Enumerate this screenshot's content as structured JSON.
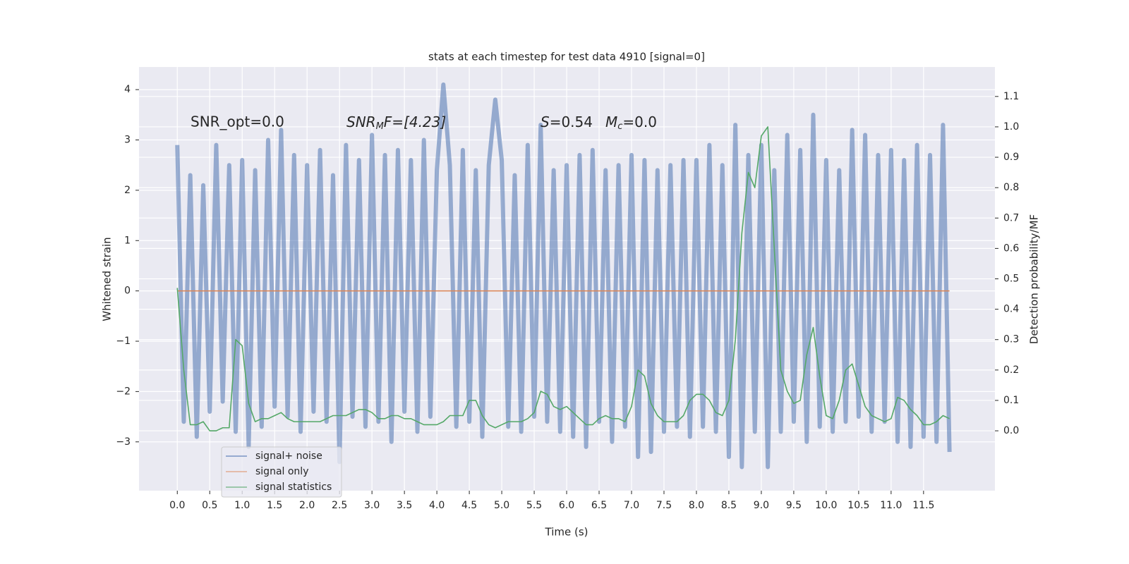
{
  "chart_data": {
    "type": "line",
    "title": "stats at each timestep for test data 4910 [signal=0]",
    "xlabel": "Time (s)",
    "ylabel": "Whitened strain",
    "y2label": "Detection probability/MF",
    "annotations": [
      [
        "SNR_opt=0.0"
      ],
      [
        "SNR",
        "M",
        "F=[4.23]"
      ],
      [
        "S",
        "=0.54",
        "M",
        "c",
        "=0.0"
      ]
    ],
    "grid": true,
    "legend": "lower left",
    "xlim": [
      -0.59,
      12.6
    ],
    "ylim": [
      -3.97,
      4.45
    ],
    "y2lim": [
      -0.197,
      1.197
    ],
    "xticks": [
      {
        "value": 0,
        "label": "0.0"
      },
      0.5,
      {
        "value": 1,
        "label": "1.0"
      },
      1.5,
      {
        "value": 2,
        "label": "2.0"
      },
      2.5,
      {
        "value": 3,
        "label": "3.0"
      },
      3.5,
      {
        "value": 4,
        "label": "4.0"
      },
      4.5,
      {
        "value": 5,
        "label": "5.0"
      },
      5.5,
      {
        "value": 6,
        "label": "6.0"
      },
      6.5,
      {
        "value": 7,
        "label": "7.0"
      },
      7.5,
      {
        "value": 8,
        "label": "8.0"
      },
      8.5,
      {
        "value": 9,
        "label": "9.0"
      },
      9.5,
      {
        "value": 10,
        "label": "10.0"
      },
      10.5,
      {
        "value": 11,
        "label": "11.0"
      },
      11.5
    ],
    "yticks": [
      {
        "value": -3,
        "label": "−3"
      },
      {
        "value": -2,
        "label": "−2"
      },
      {
        "value": -1,
        "label": "−1"
      },
      0,
      1,
      2,
      3,
      4
    ],
    "y2ticks": [
      {
        "value": 0,
        "label": "0.0"
      },
      0.1,
      0.2,
      0.3,
      0.4,
      0.5,
      0.6,
      0.7,
      0.8,
      0.9,
      {
        "value": 1,
        "label": "1.0"
      },
      1.1
    ],
    "x": [
      0,
      0.1,
      0.2,
      0.3,
      0.4,
      0.5,
      0.6,
      0.7,
      0.8,
      0.9,
      1,
      1.1,
      1.2,
      1.3,
      1.4,
      1.5,
      1.6,
      1.7,
      1.8,
      1.9,
      2,
      2.1,
      2.2,
      2.3,
      2.4,
      2.5,
      2.6,
      2.7,
      2.8,
      2.9,
      3,
      3.1,
      3.2,
      3.3,
      3.4,
      3.5,
      3.6,
      3.7,
      3.8,
      3.9,
      4,
      4.1,
      4.2,
      4.3,
      4.4,
      4.5,
      4.6,
      4.7,
      4.8,
      4.9,
      5,
      5.1,
      5.2,
      5.3,
      5.4,
      5.5,
      5.6,
      5.7,
      5.8,
      5.9,
      6,
      6.1,
      6.2,
      6.3,
      6.4,
      6.5,
      6.6,
      6.7,
      6.8,
      6.9,
      7,
      7.1,
      7.2,
      7.3,
      7.4,
      7.5,
      7.6,
      7.7,
      7.8,
      7.9,
      8,
      8.1,
      8.2,
      8.3,
      8.4,
      8.5,
      8.6,
      8.7,
      8.8,
      8.9,
      9,
      9.1,
      9.2,
      9.3,
      9.4,
      9.5,
      9.6,
      9.7,
      9.8,
      9.9,
      10,
      10.1,
      10.2,
      10.3,
      10.4,
      10.5,
      10.6,
      10.7,
      10.8,
      10.9,
      11,
      11.1,
      11.2,
      11.3,
      11.4,
      11.5,
      11.6,
      11.7,
      11.8,
      11.9
    ],
    "series": [
      {
        "name": "signal+ noise",
        "color": "#4c72b0",
        "values": [
          2.9,
          -2.6,
          2.3,
          -2.9,
          2.1,
          -2.4,
          2.9,
          -2.2,
          2.5,
          -2.8,
          2.6,
          -3.1,
          2.4,
          -2.7,
          3.0,
          -2.3,
          3.2,
          -2.5,
          2.7,
          -2.8,
          2.5,
          -2.4,
          2.8,
          -2.6,
          2.3,
          -3.4,
          2.9,
          -2.5,
          2.6,
          -2.7,
          3.1,
          -2.6,
          2.7,
          -3.0,
          2.8,
          -2.4,
          2.6,
          -2.8,
          3.0,
          -2.5,
          2.4,
          4.1,
          2.5,
          -2.7,
          2.8,
          -2.6,
          2.4,
          -2.9,
          2.5,
          3.8,
          2.6,
          -2.7,
          2.3,
          -2.8,
          2.9,
          -2.5,
          3.3,
          -2.6,
          2.4,
          -2.8,
          2.5,
          -2.9,
          2.7,
          -3.1,
          2.8,
          -2.6,
          2.4,
          -3.0,
          2.5,
          -2.7,
          2.7,
          -3.3,
          2.6,
          -3.2,
          2.4,
          -2.8,
          2.5,
          -2.7,
          2.6,
          -2.9,
          2.6,
          -2.7,
          2.9,
          -2.8,
          2.5,
          -3.3,
          3.3,
          -3.5,
          2.7,
          -2.8,
          2.9,
          -3.5,
          2.4,
          -2.8,
          3.1,
          -2.6,
          2.8,
          -3.0,
          3.5,
          -2.7,
          2.6,
          -2.8,
          2.4,
          -2.6,
          3.2,
          -2.5,
          3.1,
          -2.8,
          2.7,
          -2.6,
          2.8,
          -3.0,
          2.6,
          -3.1,
          2.9,
          -2.9,
          2.7,
          -3.0,
          3.3,
          -3.2
        ]
      },
      {
        "name": "signal only",
        "color": "#dd8452",
        "values": [
          0,
          0,
          0,
          0,
          0,
          0,
          0,
          0,
          0,
          0,
          0,
          0,
          0,
          0,
          0,
          0,
          0,
          0,
          0,
          0,
          0,
          0,
          0,
          0,
          0,
          0,
          0,
          0,
          0,
          0,
          0,
          0,
          0,
          0,
          0,
          0,
          0,
          0,
          0,
          0,
          0,
          0,
          0,
          0,
          0,
          0,
          0,
          0,
          0,
          0,
          0,
          0,
          0,
          0,
          0,
          0,
          0,
          0,
          0,
          0,
          0,
          0,
          0,
          0,
          0,
          0,
          0,
          0,
          0,
          0,
          0,
          0,
          0,
          0,
          0,
          0,
          0,
          0,
          0,
          0,
          0,
          0,
          0,
          0,
          0,
          0,
          0,
          0,
          0,
          0,
          0,
          0,
          0,
          0,
          0,
          0,
          0,
          0,
          0,
          0,
          0,
          0,
          0,
          0,
          0,
          0,
          0,
          0,
          0,
          0,
          0,
          0,
          0,
          0,
          0,
          0,
          0,
          0,
          0,
          0
        ]
      },
      {
        "name": "signal statistics",
        "color": "#55a868",
        "axis": "y2",
        "values": [
          0.47,
          0.2,
          0.02,
          0.02,
          0.03,
          0.0,
          0.0,
          0.01,
          0.01,
          0.3,
          0.28,
          0.09,
          0.03,
          0.04,
          0.04,
          0.05,
          0.06,
          0.04,
          0.03,
          0.03,
          0.03,
          0.03,
          0.03,
          0.04,
          0.05,
          0.05,
          0.05,
          0.06,
          0.07,
          0.07,
          0.06,
          0.04,
          0.04,
          0.05,
          0.05,
          0.04,
          0.04,
          0.03,
          0.02,
          0.02,
          0.02,
          0.03,
          0.05,
          0.05,
          0.05,
          0.1,
          0.1,
          0.05,
          0.02,
          0.01,
          0.02,
          0.03,
          0.03,
          0.03,
          0.04,
          0.06,
          0.13,
          0.12,
          0.08,
          0.07,
          0.08,
          0.06,
          0.04,
          0.02,
          0.02,
          0.04,
          0.05,
          0.04,
          0.04,
          0.03,
          0.08,
          0.2,
          0.18,
          0.09,
          0.05,
          0.03,
          0.03,
          0.03,
          0.05,
          0.1,
          0.12,
          0.12,
          0.1,
          0.06,
          0.05,
          0.1,
          0.3,
          0.65,
          0.85,
          0.8,
          0.97,
          1.0,
          0.6,
          0.2,
          0.13,
          0.09,
          0.1,
          0.25,
          0.34,
          0.18,
          0.05,
          0.04,
          0.1,
          0.2,
          0.22,
          0.15,
          0.08,
          0.05,
          0.04,
          0.03,
          0.04,
          0.11,
          0.1,
          0.07,
          0.05,
          0.02,
          0.02,
          0.03,
          0.05,
          0.04
        ]
      }
    ]
  }
}
